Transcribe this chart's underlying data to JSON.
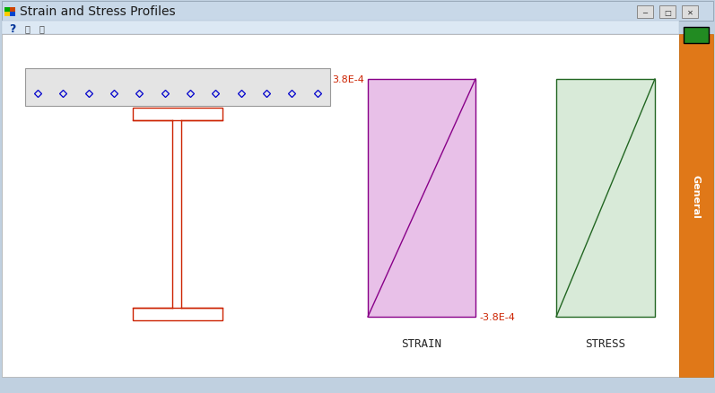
{
  "title": "Strain and Stress Profiles",
  "window_title_color": "#1a1a1a",
  "titlebar_color": "#c8d8e8",
  "toolbar_color": "#dce8f4",
  "main_bg": "#ffffff",
  "outer_bg": "#c0d0e0",
  "strain_label": "STRAIN",
  "stress_label": "STRESS",
  "strain_value_top": "3.8E-4",
  "strain_value_bot": "-3.8E-4",
  "annotation_color": "#cc2200",
  "strain_fill": "#e8c0e8",
  "strain_edge": "#880088",
  "stress_fill": "#d8ead8",
  "stress_edge": "#226622",
  "beam_color": "#cc2200",
  "slab_fill": "#e4e4e4",
  "slab_edge": "#999999",
  "dot_color": "#0000cc",
  "sidebar_orange": "#e07818",
  "sidebar_text": "#ffffff",
  "sidebar_green": "#228B22",
  "label_fontsize": 9,
  "annot_fontsize": 8,
  "title_fontsize": 10
}
